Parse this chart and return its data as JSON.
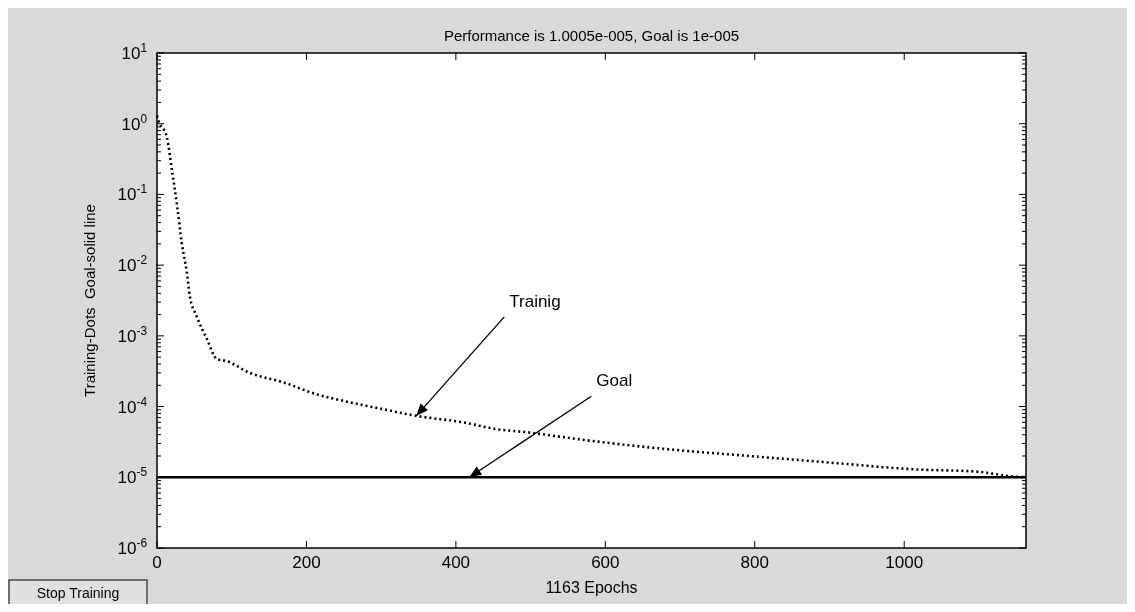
{
  "chart_data": {
    "type": "line",
    "title": "Performance is 1.0005e-005, Goal is 1e-005",
    "xlabel": "1163 Epochs",
    "ylabel": "Training-Dots  Goal-solid line",
    "log": "y",
    "xlim": [
      0,
      1163
    ],
    "xticks": [
      0,
      200,
      400,
      600,
      800,
      1000
    ],
    "ylim": [
      1e-06,
      10
    ],
    "yticks": [
      {
        "value": 10,
        "label": "10$^{1}$"
      },
      {
        "value": 1,
        "label": "10$^{0}$"
      },
      {
        "value": 0.1,
        "label": "10$^{-1}$"
      },
      {
        "value": 0.01,
        "label": "10$^{-2}$"
      },
      {
        "value": 0.001,
        "label": "10$^{-3}$"
      },
      {
        "value": 0.0001,
        "label": "10$^{-4}$"
      },
      {
        "value": 1e-05,
        "label": "10$^{-5}$"
      },
      {
        "value": 1e-06,
        "label": "10$^{-6}$"
      }
    ],
    "grid": false,
    "marker": "none",
    "line_style": "dotted",
    "series": [
      {
        "color": "#000000",
        "x": [
          0,
          2,
          13,
          20,
          27,
          33,
          40,
          44,
          53,
          67,
          80,
          93,
          124,
          169,
          213,
          258,
          302,
          347,
          413,
          454,
          498,
          560,
          666,
          793,
          905,
          1011,
          1098,
          1148,
          1163
        ],
        "values": [
          1.3,
          1.1,
          0.66,
          0.22,
          0.068,
          0.021,
          0.0078,
          0.0036,
          0.0019,
          0.00089,
          0.00047,
          0.00044,
          0.0003,
          0.00022,
          0.00015,
          0.000115,
          9.2e-05,
          7.4e-05,
          5.9e-05,
          4.8e-05,
          4.3e-05,
          3.5e-05,
          2.6e-05,
          2e-05,
          1.6e-05,
          1.3e-05,
          1.2e-05,
          1.02e-05,
          1e-05
        ]
      }
    ],
    "ref_lines": [
      {
        "axis": "y",
        "value": 1e-05,
        "color": "#000000",
        "line_style": "solid"
      }
    ],
    "annotations": [
      {
        "text": "Trainig",
        "x": 347,
        "y": 7.4e-05
      },
      {
        "text": "Goal",
        "x": 418,
        "y": 1e-05
      },
      "Stop Training"
    ]
  }
}
